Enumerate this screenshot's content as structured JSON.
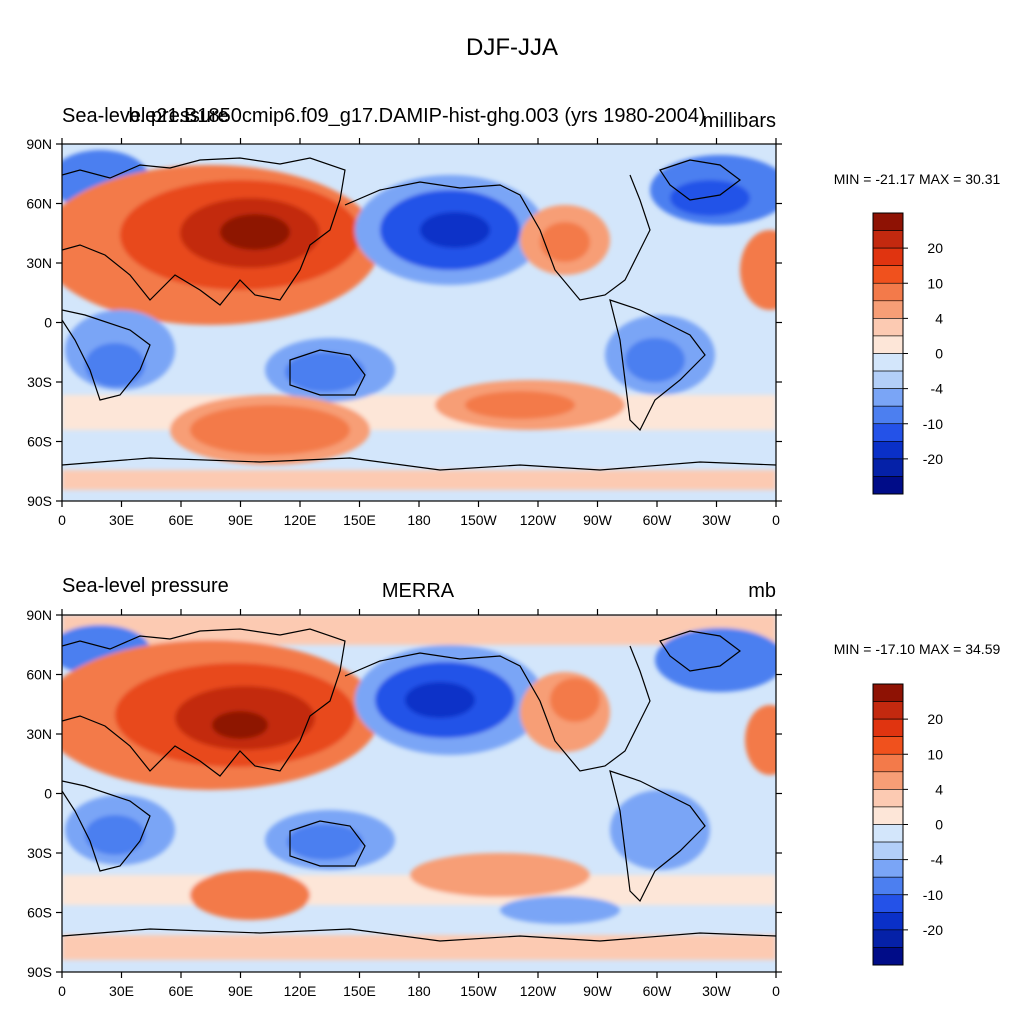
{
  "figure": {
    "title": "DJF-JJA"
  },
  "axes": {
    "lat_ticks": [
      "90N",
      "60N",
      "30N",
      "0",
      "30S",
      "60S",
      "90S"
    ],
    "lon_ticks": [
      "0",
      "30E",
      "60E",
      "90E",
      "120E",
      "150E",
      "180",
      "150W",
      "120W",
      "90W",
      "60W",
      "30W",
      "0"
    ]
  },
  "colorbar": {
    "colors": [
      "#ffffff"
    ],
    "labels": [
      "20",
      "10",
      "4",
      "0",
      "-4",
      "-10",
      "-20"
    ]
  },
  "panels": [
    {
      "left_title": "Sea-level pressure",
      "center_title": "b.e21.B1850cmip6.f09_g17.DAMIP-hist-ghg.003 (yrs 1980-2004)",
      "units": "millibars",
      "stats": "MIN = -21.17 MAX =  30.31",
      "stats_min": -21.17,
      "stats_max": 30.31
    },
    {
      "left_title": "Sea-level pressure",
      "center_title": "MERRA",
      "units": "mb",
      "stats": "MIN = -17.10 MAX =  34.59",
      "stats_min": -17.1,
      "stats_max": 34.59
    }
  ],
  "map_colors": {
    "coastline": "#000000",
    "frame": "#000000"
  }
}
